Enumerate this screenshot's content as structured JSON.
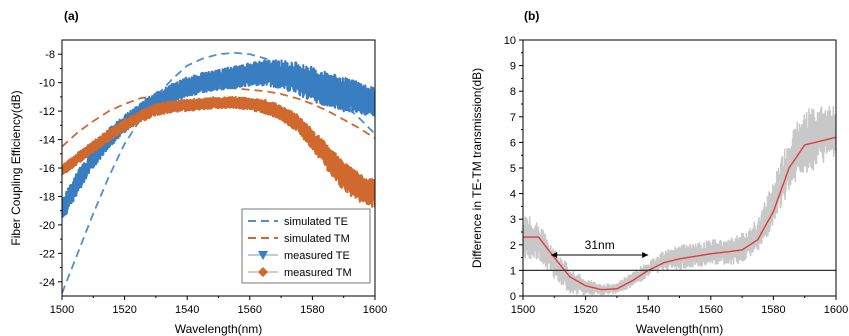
{
  "chart_data": [
    {
      "panel_label": "(a)",
      "type": "line",
      "xlabel": "Wavelength(nm)",
      "ylabel": "Fiber Coupling Efficiency(dB)",
      "xlim": [
        1500,
        1600
      ],
      "ylim": [
        -25,
        -7
      ],
      "xticks": [
        1500,
        1520,
        1540,
        1560,
        1580,
        1600
      ],
      "yticks": [
        -24,
        -22,
        -20,
        -18,
        -16,
        -14,
        -12,
        -10,
        -8
      ],
      "legend_position": "bottom-right",
      "series": [
        {
          "name": "simulated TE",
          "style": "dashed",
          "color": "#4f8fcc",
          "x": [
            1500,
            1505,
            1510,
            1515,
            1520,
            1525,
            1530,
            1535,
            1540,
            1545,
            1550,
            1555,
            1560,
            1565,
            1570,
            1575,
            1580,
            1585,
            1590,
            1595,
            1600
          ],
          "y": [
            -24.8,
            -22.0,
            -19.2,
            -16.6,
            -14.3,
            -12.6,
            -11.0,
            -9.8,
            -8.8,
            -8.3,
            -8.0,
            -7.9,
            -8.0,
            -8.3,
            -8.7,
            -9.3,
            -9.9,
            -10.7,
            -11.5,
            -12.5,
            -13.6
          ]
        },
        {
          "name": "simulated TM",
          "style": "dashed",
          "color": "#d0692e",
          "x": [
            1500,
            1505,
            1510,
            1515,
            1520,
            1525,
            1530,
            1535,
            1540,
            1545,
            1550,
            1555,
            1560,
            1565,
            1570,
            1575,
            1580,
            1585,
            1590,
            1595,
            1600
          ],
          "y": [
            -14.5,
            -13.5,
            -12.7,
            -12.0,
            -11.5,
            -11.1,
            -10.9,
            -10.7,
            -10.6,
            -10.5,
            -10.4,
            -10.4,
            -10.5,
            -10.6,
            -10.8,
            -11.1,
            -11.5,
            -12.0,
            -12.6,
            -13.2,
            -13.9
          ]
        },
        {
          "name": "measured TE",
          "style": "marker-band",
          "marker": "down-triangle",
          "color": "#3a7ec2",
          "x": [
            1500,
            1505,
            1510,
            1515,
            1520,
            1525,
            1530,
            1535,
            1540,
            1545,
            1550,
            1555,
            1560,
            1565,
            1570,
            1575,
            1580,
            1585,
            1590,
            1595,
            1600
          ],
          "y": [
            -19.0,
            -17.0,
            -15.3,
            -13.9,
            -12.9,
            -12.0,
            -11.3,
            -10.8,
            -10.3,
            -10.0,
            -9.8,
            -9.6,
            -9.4,
            -9.3,
            -9.4,
            -9.7,
            -10.1,
            -10.5,
            -10.8,
            -11.1,
            -11.4
          ],
          "spread": [
            0.8,
            0.8,
            0.7,
            0.7,
            0.6,
            0.6,
            0.6,
            0.7,
            0.7,
            0.7,
            0.7,
            0.8,
            0.8,
            0.9,
            1.0,
            1.1,
            1.2,
            1.2,
            1.2,
            1.1,
            1.0
          ]
        },
        {
          "name": "measured TM",
          "style": "marker-band",
          "marker": "diamond",
          "color": "#d0692e",
          "x": [
            1500,
            1505,
            1510,
            1515,
            1520,
            1525,
            1530,
            1535,
            1540,
            1545,
            1550,
            1555,
            1560,
            1565,
            1570,
            1575,
            1580,
            1585,
            1590,
            1595,
            1600
          ],
          "y": [
            -16.2,
            -15.3,
            -14.5,
            -13.7,
            -13.0,
            -12.4,
            -11.9,
            -11.7,
            -11.6,
            -11.5,
            -11.4,
            -11.4,
            -11.5,
            -11.7,
            -12.1,
            -12.8,
            -14.0,
            -15.3,
            -16.6,
            -17.4,
            -17.8
          ],
          "spread": [
            0.4,
            0.4,
            0.4,
            0.4,
            0.4,
            0.4,
            0.4,
            0.4,
            0.4,
            0.4,
            0.4,
            0.4,
            0.4,
            0.5,
            0.5,
            0.6,
            0.7,
            0.9,
            1.0,
            1.0,
            1.0
          ]
        }
      ]
    },
    {
      "panel_label": "(b)",
      "type": "line",
      "xlabel": "Wavelength(nm)",
      "ylabel": "Difference in TE-TM transmission(dB)",
      "xlim": [
        1500,
        1600
      ],
      "ylim": [
        0,
        10
      ],
      "xticks": [
        1500,
        1520,
        1540,
        1560,
        1580,
        1600
      ],
      "yticks": [
        0,
        1,
        2,
        3,
        4,
        5,
        6,
        7,
        8,
        9,
        10
      ],
      "reference_line": {
        "y": 1
      },
      "annotation": {
        "text": "31nm",
        "x_start": 1509,
        "x_end": 1540,
        "y": 1.6
      },
      "series": [
        {
          "name": "",
          "style": "noisy-band",
          "color": "#c8c8c8",
          "x": [
            1500,
            1505,
            1510,
            1515,
            1520,
            1525,
            1530,
            1535,
            1540,
            1545,
            1550,
            1555,
            1560,
            1565,
            1570,
            1575,
            1580,
            1585,
            1590,
            1595,
            1600
          ],
          "y": [
            2.4,
            2.1,
            1.3,
            0.6,
            0.35,
            0.25,
            0.3,
            0.65,
            1.05,
            1.35,
            1.5,
            1.6,
            1.7,
            1.75,
            1.85,
            2.4,
            3.6,
            5.2,
            6.0,
            6.3,
            6.5
          ],
          "spread": [
            0.9,
            0.7,
            0.6,
            0.5,
            0.3,
            0.2,
            0.2,
            0.3,
            0.3,
            0.4,
            0.5,
            0.5,
            0.5,
            0.5,
            0.6,
            0.7,
            0.9,
            1.1,
            1.3,
            1.2,
            1.0
          ]
        },
        {
          "name": "",
          "style": "solid",
          "color": "#e03b3b",
          "x": [
            1500,
            1505,
            1510,
            1515,
            1520,
            1525,
            1530,
            1535,
            1540,
            1545,
            1550,
            1555,
            1560,
            1565,
            1570,
            1575,
            1580,
            1585,
            1590,
            1595,
            1600
          ],
          "y": [
            2.3,
            2.3,
            1.5,
            0.75,
            0.4,
            0.25,
            0.28,
            0.6,
            1.0,
            1.3,
            1.45,
            1.55,
            1.65,
            1.72,
            1.8,
            2.2,
            3.3,
            5.0,
            5.9,
            6.05,
            6.2
          ]
        }
      ]
    }
  ]
}
